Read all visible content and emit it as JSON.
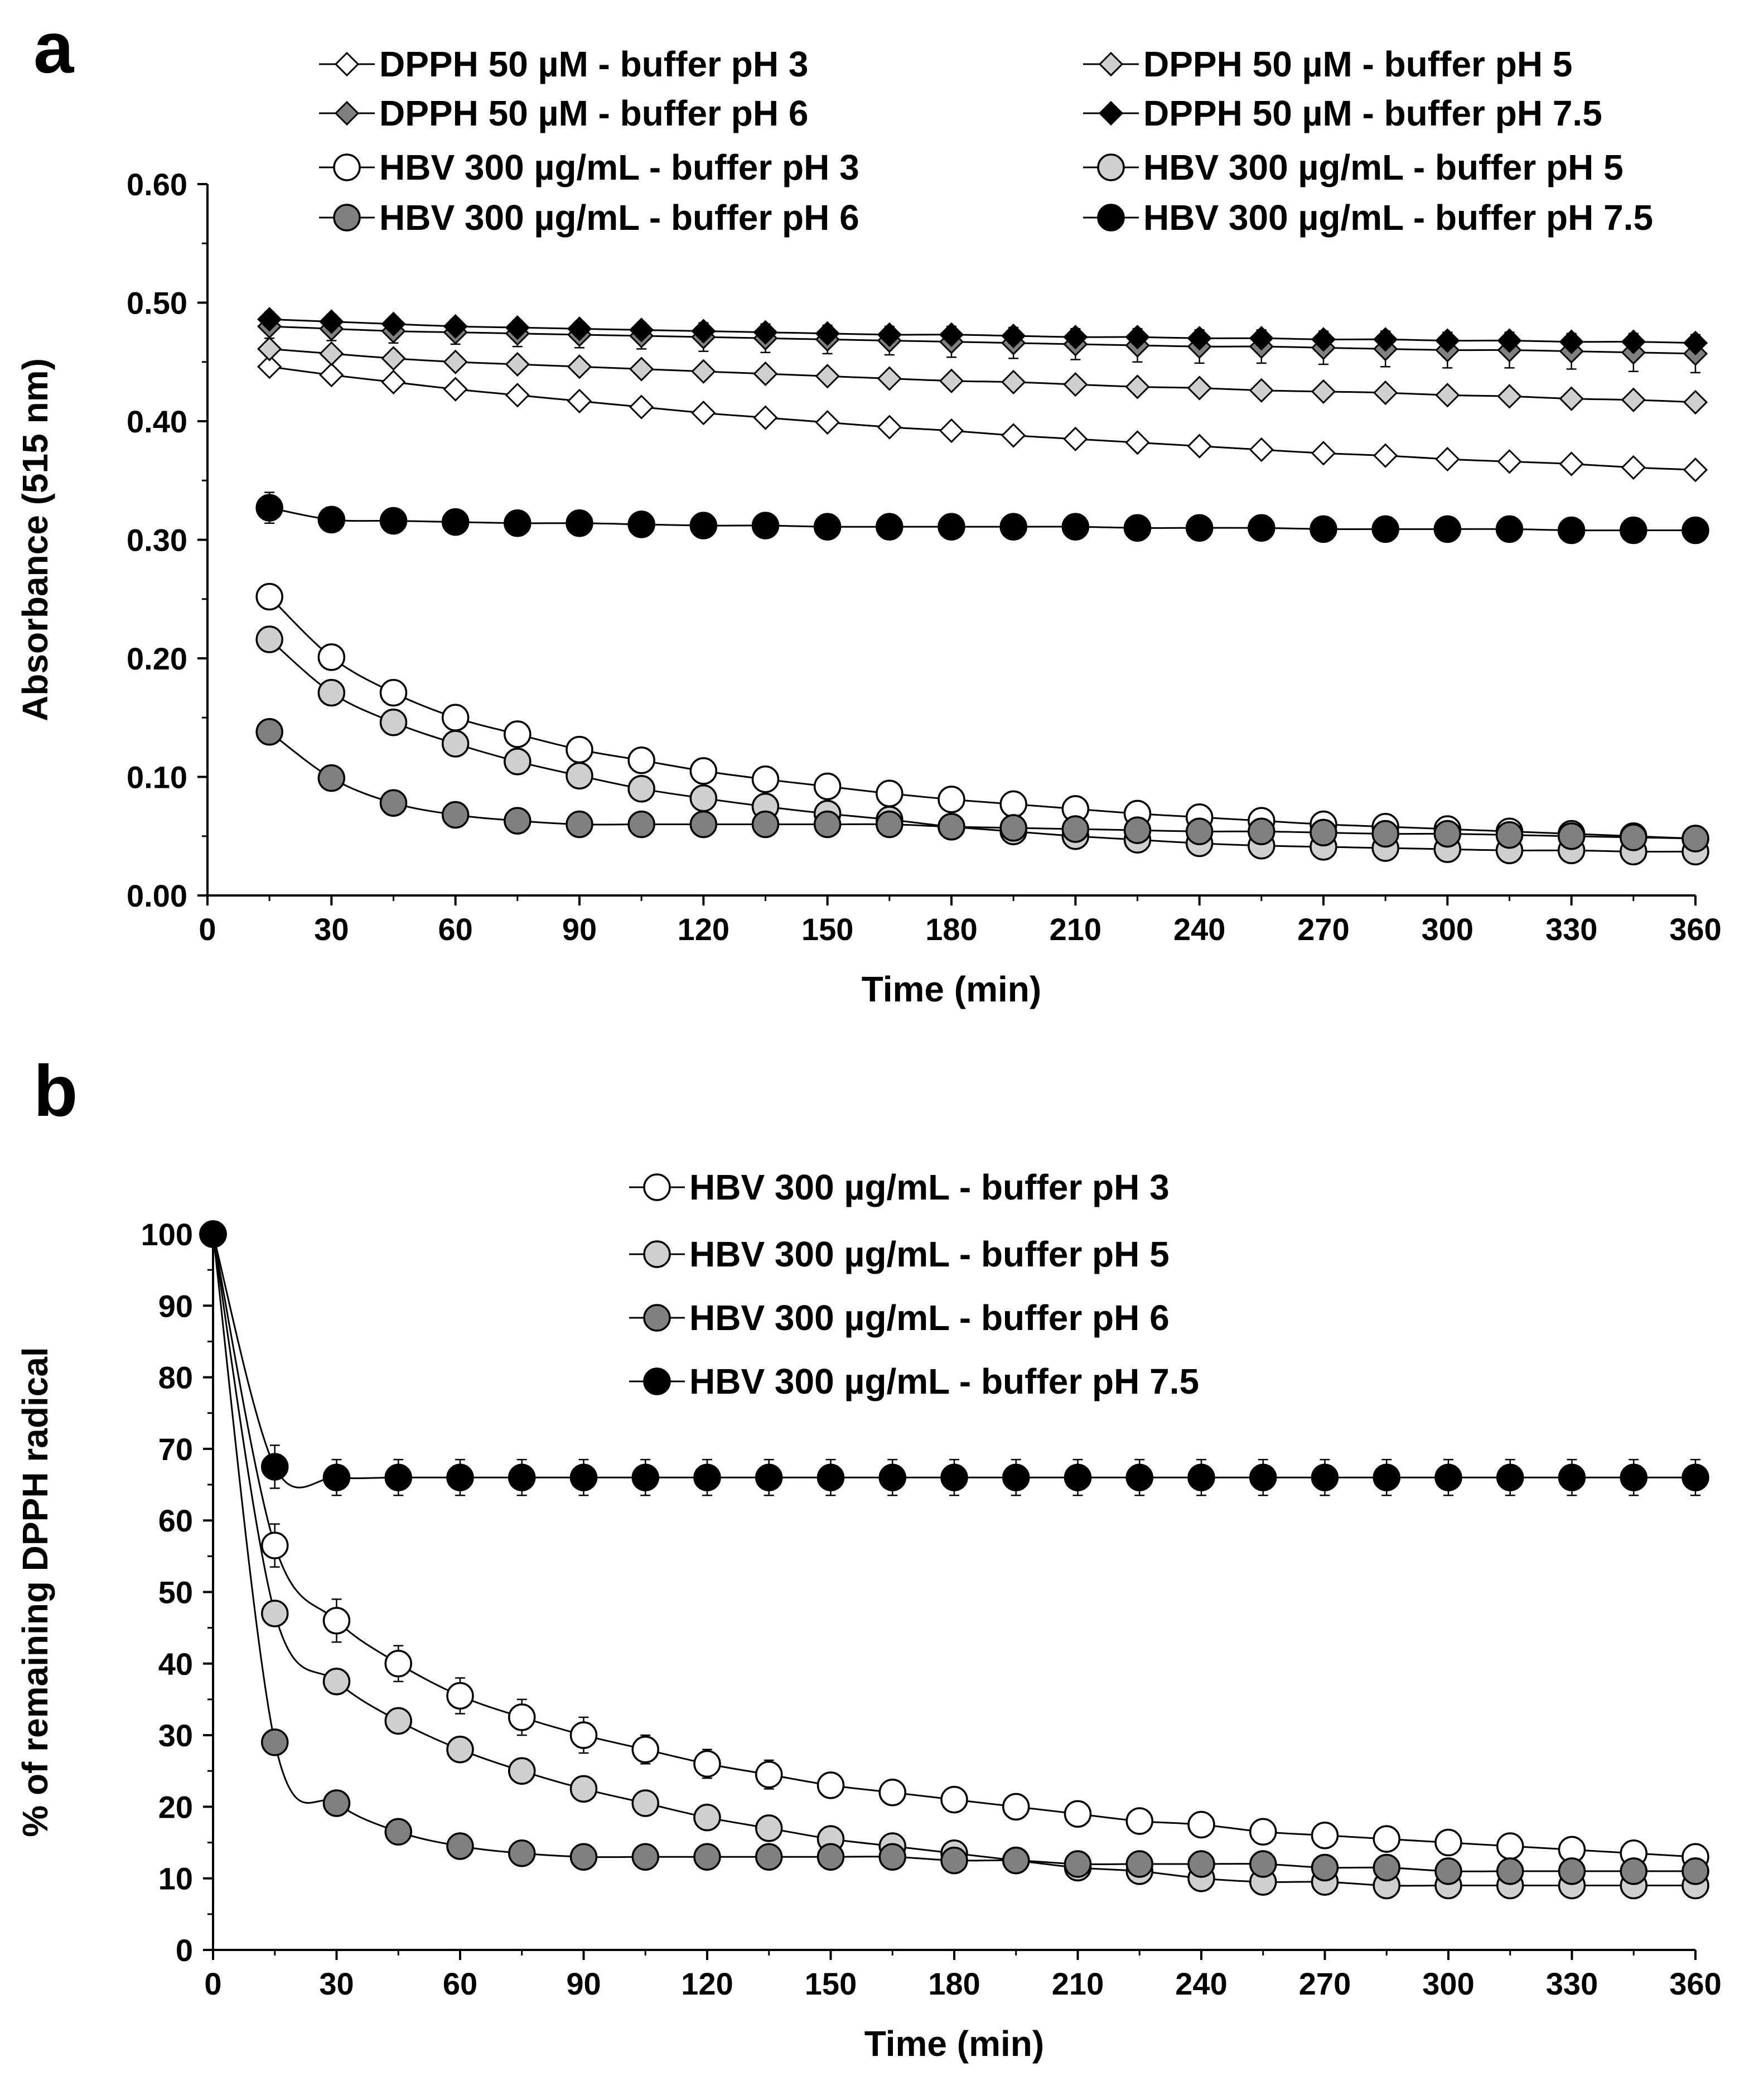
{
  "figure_title": "",
  "chart_data": [
    {
      "panel": "a",
      "type": "line",
      "title": "",
      "xlabel": "Time (min)",
      "ylabel": "Absorbance (515 nm)",
      "xlim": [
        0,
        360
      ],
      "ylim": [
        0,
        0.6
      ],
      "xticks": [
        0,
        30,
        60,
        90,
        120,
        150,
        180,
        210,
        240,
        270,
        300,
        330,
        360
      ],
      "yticks": [
        "0.00",
        "0.10",
        "0.20",
        "0.30",
        "0.40",
        "0.50",
        "0.60"
      ],
      "grid": false,
      "legend_position": "top, two columns",
      "x": [
        15,
        30,
        45,
        60,
        75,
        90,
        105,
        120,
        135,
        150,
        165,
        180,
        195,
        210,
        225,
        240,
        255,
        270,
        285,
        300,
        315,
        330,
        345,
        360
      ],
      "series": [
        {
          "name": "DPPH 50 µM - buffer  pH 3",
          "marker": "diamond",
          "fill": "#ffffff",
          "values": [
            0.446,
            0.439,
            0.433,
            0.427,
            0.422,
            0.417,
            0.412,
            0.407,
            0.403,
            0.399,
            0.395,
            0.392,
            0.388,
            0.385,
            0.382,
            0.379,
            0.376,
            0.373,
            0.371,
            0.368,
            0.366,
            0.364,
            0.361,
            0.359
          ],
          "error": [
            0.004,
            0.004,
            0.004,
            0.004,
            0.004,
            0.004,
            0.004,
            0.004,
            0.004,
            0.004,
            0.004,
            0.004,
            0.004,
            0.004,
            0.004,
            0.004,
            0.004,
            0.004,
            0.004,
            0.004,
            0.004,
            0.004,
            0.004,
            0.004
          ]
        },
        {
          "name": "DPPH 50 µM - buffer pH 5",
          "marker": "diamond",
          "fill": "#cfcfcf",
          "values": [
            0.461,
            0.457,
            0.453,
            0.45,
            0.448,
            0.446,
            0.444,
            0.442,
            0.44,
            0.438,
            0.436,
            0.434,
            0.433,
            0.431,
            0.429,
            0.428,
            0.426,
            0.425,
            0.424,
            0.422,
            0.421,
            0.419,
            0.418,
            0.416
          ],
          "error": [
            0.004,
            0.004,
            0.004,
            0.004,
            0.004,
            0.004,
            0.004,
            0.004,
            0.004,
            0.004,
            0.004,
            0.004,
            0.004,
            0.004,
            0.004,
            0.004,
            0.004,
            0.004,
            0.004,
            0.004,
            0.004,
            0.004,
            0.004,
            0.004
          ]
        },
        {
          "name": "DPPH 50 µM - buffer pH 6",
          "marker": "diamond",
          "fill": "#808080",
          "values": [
            0.48,
            0.478,
            0.476,
            0.475,
            0.474,
            0.473,
            0.472,
            0.471,
            0.47,
            0.469,
            0.468,
            0.467,
            0.466,
            0.465,
            0.464,
            0.463,
            0.463,
            0.462,
            0.461,
            0.46,
            0.46,
            0.459,
            0.458,
            0.457
          ],
          "error": [
            0.01,
            0.01,
            0.01,
            0.01,
            0.011,
            0.011,
            0.011,
            0.012,
            0.012,
            0.012,
            0.012,
            0.013,
            0.013,
            0.013,
            0.014,
            0.014,
            0.014,
            0.014,
            0.015,
            0.015,
            0.015,
            0.015,
            0.016,
            0.016
          ]
        },
        {
          "name": "DPPH 50 µM - buffer pH 7.5",
          "marker": "diamond",
          "fill": "#000000",
          "values": [
            0.486,
            0.484,
            0.482,
            0.48,
            0.479,
            0.478,
            0.477,
            0.476,
            0.475,
            0.474,
            0.473,
            0.473,
            0.472,
            0.471,
            0.471,
            0.47,
            0.47,
            0.469,
            0.469,
            0.468,
            0.468,
            0.467,
            0.467,
            0.466
          ],
          "error": [
            0.006,
            0.006,
            0.006,
            0.006,
            0.006,
            0.006,
            0.006,
            0.006,
            0.006,
            0.006,
            0.006,
            0.006,
            0.006,
            0.006,
            0.006,
            0.006,
            0.006,
            0.006,
            0.006,
            0.006,
            0.006,
            0.006,
            0.006,
            0.006
          ]
        },
        {
          "name": "HBV 300 µg/mL - buffer pH 3",
          "marker": "circle",
          "fill": "#ffffff",
          "values": [
            0.252,
            0.201,
            0.171,
            0.15,
            0.136,
            0.123,
            0.114,
            0.105,
            0.098,
            0.092,
            0.086,
            0.081,
            0.077,
            0.073,
            0.069,
            0.066,
            0.063,
            0.06,
            0.058,
            0.056,
            0.054,
            0.052,
            0.05,
            0.048
          ],
          "error": [
            0,
            0,
            0,
            0,
            0,
            0,
            0,
            0,
            0,
            0,
            0,
            0,
            0,
            0,
            0,
            0,
            0,
            0,
            0,
            0,
            0,
            0,
            0,
            0
          ]
        },
        {
          "name": "HBV 300 µg/mL - buffer pH 5",
          "marker": "circle",
          "fill": "#cfcfcf",
          "values": [
            0.216,
            0.171,
            0.146,
            0.128,
            0.113,
            0.101,
            0.09,
            0.082,
            0.075,
            0.069,
            0.064,
            0.058,
            0.054,
            0.05,
            0.047,
            0.044,
            0.042,
            0.041,
            0.04,
            0.039,
            0.038,
            0.038,
            0.037,
            0.037
          ],
          "error": [
            0,
            0,
            0,
            0,
            0,
            0,
            0,
            0,
            0,
            0,
            0,
            0,
            0,
            0,
            0,
            0,
            0,
            0,
            0,
            0,
            0,
            0,
            0,
            0
          ]
        },
        {
          "name": "HBV 300 µg/mL - buffer pH 6",
          "marker": "circle",
          "fill": "#808080",
          "values": [
            0.138,
            0.099,
            0.078,
            0.068,
            0.063,
            0.06,
            0.06,
            0.06,
            0.06,
            0.06,
            0.06,
            0.058,
            0.057,
            0.056,
            0.055,
            0.054,
            0.054,
            0.053,
            0.052,
            0.052,
            0.051,
            0.05,
            0.049,
            0.048
          ],
          "error": [
            0,
            0,
            0,
            0,
            0,
            0,
            0,
            0,
            0,
            0,
            0,
            0,
            0,
            0,
            0,
            0,
            0,
            0,
            0,
            0,
            0,
            0,
            0,
            0
          ]
        },
        {
          "name": "HBV 300 µg/mL - buffer pH 7.5",
          "marker": "circle",
          "fill": "#000000",
          "values": [
            0.327,
            0.317,
            0.316,
            0.315,
            0.314,
            0.314,
            0.313,
            0.312,
            0.312,
            0.311,
            0.311,
            0.311,
            0.311,
            0.311,
            0.31,
            0.31,
            0.31,
            0.309,
            0.309,
            0.309,
            0.309,
            0.308,
            0.308,
            0.308
          ],
          "error": [
            0.013,
            0.006,
            0.004,
            0.004,
            0.004,
            0.004,
            0.004,
            0.004,
            0.004,
            0.004,
            0.004,
            0.004,
            0.004,
            0.004,
            0.004,
            0.004,
            0.004,
            0.004,
            0.004,
            0.004,
            0.004,
            0.004,
            0.004,
            0.004
          ]
        }
      ]
    },
    {
      "panel": "b",
      "type": "line",
      "title": "",
      "xlabel": "Time (min)",
      "ylabel": "% of remaining DPPH radical",
      "xlim": [
        0,
        360
      ],
      "ylim": [
        0,
        100
      ],
      "xticks": [
        0,
        30,
        60,
        90,
        120,
        150,
        180,
        210,
        240,
        270,
        300,
        330,
        360
      ],
      "yticks": [
        "0",
        "10",
        "20",
        "30",
        "40",
        "50",
        "60",
        "70",
        "80",
        "90",
        "100"
      ],
      "grid": false,
      "legend_position": "top, single column",
      "x": [
        0,
        15,
        30,
        45,
        60,
        75,
        90,
        105,
        120,
        135,
        150,
        165,
        180,
        195,
        210,
        225,
        240,
        255,
        270,
        285,
        300,
        315,
        330,
        345,
        360
      ],
      "series": [
        {
          "name": "HBV 300 µg/mL - buffer pH 3",
          "marker": "circle",
          "fill": "#ffffff",
          "values": [
            100,
            56.5,
            46,
            40,
            35.5,
            32.5,
            30,
            28,
            26,
            24.5,
            23,
            22,
            21,
            20,
            19,
            18,
            17.5,
            16.5,
            16,
            15.5,
            15,
            14.5,
            14,
            13.5,
            13
          ],
          "error": [
            0,
            3,
            3,
            2.5,
            2.5,
            2.5,
            2.5,
            2,
            2,
            2,
            1.5,
            1.5,
            1.5,
            1,
            1,
            1,
            1,
            1,
            1,
            1,
            1,
            1,
            1,
            1,
            1
          ]
        },
        {
          "name": "HBV 300 µg/mL - buffer pH 5",
          "marker": "circle",
          "fill": "#cfcfcf",
          "values": [
            100,
            47,
            37.5,
            32,
            28,
            25,
            22.5,
            20.5,
            18.5,
            17,
            15.5,
            14.5,
            13.5,
            12.5,
            11.5,
            11,
            10,
            9.5,
            9.5,
            9,
            9,
            9,
            9,
            9,
            9
          ],
          "error": [
            0,
            1,
            1,
            1,
            1,
            1,
            1,
            1,
            1,
            1,
            1,
            1,
            1,
            1,
            1,
            1,
            1,
            1,
            1,
            1,
            1,
            1,
            1,
            1,
            1
          ]
        },
        {
          "name": "HBV 300 µg/mL - buffer pH 6",
          "marker": "circle",
          "fill": "#808080",
          "values": [
            100,
            29,
            20.5,
            16.5,
            14.5,
            13.5,
            13,
            13,
            13,
            13,
            13,
            13,
            12.5,
            12.5,
            12,
            12,
            12,
            12,
            11.5,
            11.5,
            11,
            11,
            11,
            11,
            11
          ],
          "error": [
            0,
            0.5,
            0.5,
            0.5,
            0.5,
            0.5,
            0.5,
            0.5,
            0.5,
            0.5,
            0.5,
            0.5,
            0.5,
            0.5,
            0.5,
            0.5,
            0.5,
            0.5,
            0.5,
            0.5,
            0.5,
            0.5,
            0.5,
            0.5,
            0.5
          ]
        },
        {
          "name": "HBV 300 µg/mL - buffer pH 7.5",
          "marker": "circle",
          "fill": "#000000",
          "values": [
            100,
            67.5,
            66,
            66,
            66,
            66,
            66,
            66,
            66,
            66,
            66,
            66,
            66,
            66,
            66,
            66,
            66,
            66,
            66,
            66,
            66,
            66,
            66,
            66,
            66
          ],
          "error": [
            0,
            3,
            2.5,
            2.5,
            2.5,
            2.5,
            2.5,
            2.5,
            2.5,
            2.5,
            2.5,
            2.5,
            2.5,
            2.5,
            2.5,
            2.5,
            2.5,
            2.5,
            2.5,
            2.5,
            2.5,
            2.5,
            2.5,
            2.5,
            2.5
          ]
        }
      ]
    }
  ]
}
